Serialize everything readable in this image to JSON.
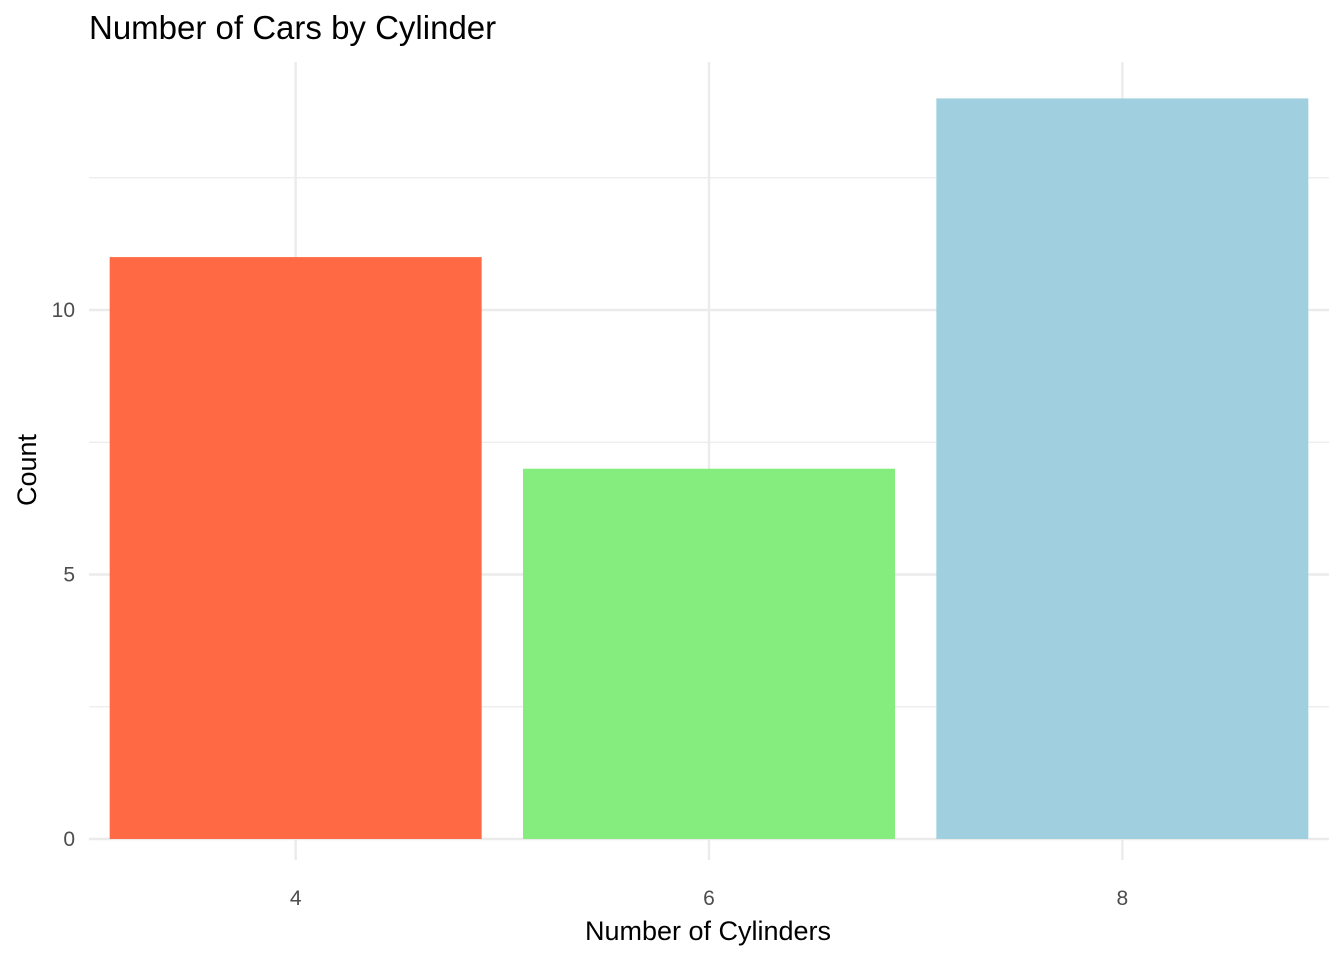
{
  "chart_data": {
    "type": "bar",
    "title": "Number of Cars by Cylinder",
    "xlabel": "Number of Cylinders",
    "ylabel": "Count",
    "categories": [
      "4",
      "6",
      "8"
    ],
    "values": [
      11,
      7,
      14
    ],
    "colors": [
      "#FF6A44",
      "#84ED7E",
      "#A0D0E0"
    ],
    "ylim": [
      0,
      15
    ],
    "yticks": [
      0,
      5,
      10
    ],
    "yticks_minor": [
      2.5,
      7.5,
      12.5
    ],
    "grid": true,
    "legend": "none"
  }
}
